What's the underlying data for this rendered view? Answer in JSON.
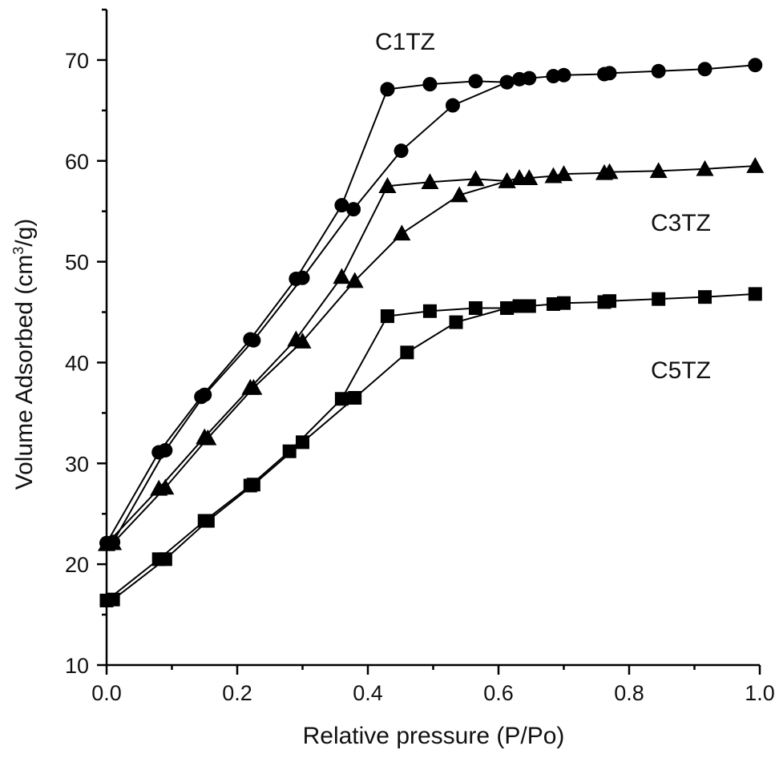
{
  "chart_data": {
    "type": "line",
    "title": "",
    "xlabel": "Relative pressure (P/Po)",
    "ylabel_parts": {
      "pre": "Volume Adsorbed (cm",
      "sup": "3",
      "post": "/g)"
    },
    "xlim": [
      0.0,
      1.0
    ],
    "ylim": [
      10,
      75
    ],
    "x_ticks": [
      0.0,
      0.2,
      0.4,
      0.6,
      0.8,
      1.0
    ],
    "x_tick_labels": [
      "0.0",
      "0.2",
      "0.4",
      "0.6",
      "0.8",
      "1.0"
    ],
    "y_ticks": [
      10,
      20,
      30,
      40,
      50,
      60,
      70
    ],
    "y_tick_labels": [
      "10",
      "20",
      "30",
      "40",
      "50",
      "60",
      "70"
    ],
    "grid": false,
    "legend": "none",
    "series": [
      {
        "name": "C1TZ",
        "marker": "circle",
        "adsorption": {
          "x": [
            0.0,
            0.08,
            0.145,
            0.22,
            0.29,
            0.36,
            0.43
          ],
          "y": [
            22.1,
            31.1,
            36.6,
            42.3,
            48.3,
            55.6,
            67.1
          ]
        },
        "desorption": {
          "x": [
            0.993,
            0.916,
            0.845,
            0.77,
            0.762,
            0.7,
            0.684,
            0.647,
            0.632,
            0.613,
            0.565,
            0.495,
            0.43
          ],
          "y": [
            69.5,
            69.1,
            68.9,
            68.7,
            68.6,
            68.5,
            68.4,
            68.2,
            68.1,
            67.8,
            67.9,
            67.6,
            67.1
          ]
        },
        "adsorption_upper": {
          "x": [
            0.613,
            0.53,
            0.451,
            0.378,
            0.3,
            0.225,
            0.15,
            0.09,
            0.01
          ],
          "y": [
            67.8,
            65.5,
            61.0,
            55.2,
            48.4,
            42.2,
            36.8,
            31.3,
            22.2
          ]
        }
      },
      {
        "name": "C3TZ",
        "marker": "triangle",
        "adsorption": {
          "x": [
            0.0,
            0.08,
            0.15,
            0.22,
            0.29,
            0.36,
            0.43
          ],
          "y": [
            22.0,
            27.5,
            32.6,
            37.5,
            42.3,
            48.5,
            57.5
          ]
        },
        "desorption": {
          "x": [
            0.993,
            0.916,
            0.845,
            0.77,
            0.762,
            0.7,
            0.684,
            0.647,
            0.632,
            0.613,
            0.565,
            0.495,
            0.43
          ],
          "y": [
            59.5,
            59.2,
            59.0,
            58.9,
            58.8,
            58.7,
            58.5,
            58.3,
            58.3,
            58.0,
            58.2,
            57.9,
            57.5
          ]
        },
        "adsorption_upper": {
          "x": [
            0.613,
            0.54,
            0.452,
            0.38,
            0.3,
            0.225,
            0.155,
            0.09,
            0.01
          ],
          "y": [
            58.0,
            56.6,
            52.8,
            48.1,
            42.1,
            37.5,
            32.5,
            27.6,
            22.1
          ]
        }
      },
      {
        "name": "C5TZ",
        "marker": "square",
        "adsorption": {
          "x": [
            0.0,
            0.08,
            0.15,
            0.22,
            0.28,
            0.36,
            0.43
          ],
          "y": [
            16.4,
            20.5,
            24.3,
            27.8,
            31.2,
            36.4,
            44.6
          ]
        },
        "desorption": {
          "x": [
            0.993,
            0.916,
            0.845,
            0.77,
            0.762,
            0.7,
            0.684,
            0.647,
            0.632,
            0.613,
            0.565,
            0.495,
            0.43
          ],
          "y": [
            46.8,
            46.5,
            46.3,
            46.1,
            46.0,
            45.9,
            45.8,
            45.6,
            45.6,
            45.4,
            45.4,
            45.1,
            44.6
          ]
        },
        "adsorption_upper": {
          "x": [
            0.613,
            0.535,
            0.46,
            0.38,
            0.3,
            0.225,
            0.155,
            0.09,
            0.01
          ],
          "y": [
            45.4,
            44.0,
            41.0,
            36.5,
            32.1,
            27.9,
            24.3,
            20.5,
            16.5
          ]
        }
      }
    ]
  }
}
